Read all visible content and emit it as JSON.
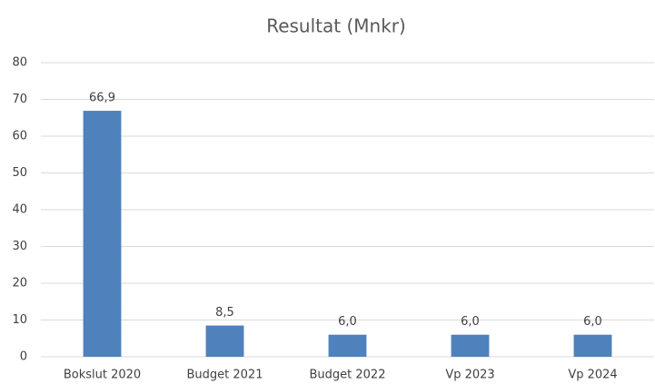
{
  "chart_data": {
    "type": "bar",
    "title": "Resultat (Mnkr)",
    "categories": [
      "Bokslut 2020",
      "Budget 2021",
      "Budget 2022",
      "Vp 2023",
      "Vp 2024"
    ],
    "values": [
      66.9,
      8.5,
      6.0,
      6.0,
      6.0
    ],
    "value_labels": [
      "66,9",
      "8,5",
      "6,0",
      "6,0",
      "6,0"
    ],
    "color": "#4f81bd",
    "ylim": [
      0,
      80
    ],
    "yticks": [
      0,
      10,
      20,
      30,
      40,
      50,
      60,
      70,
      80
    ],
    "grid": true
  }
}
